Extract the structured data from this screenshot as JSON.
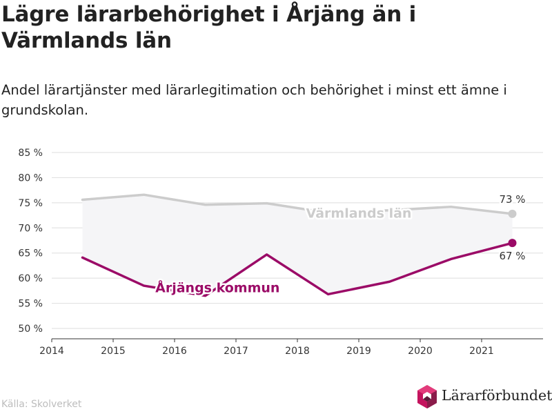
{
  "header": {
    "title": "Lägre lärarbehörighet i Årjäng än i Värmlands län",
    "subtitle": "Andel lärartjänster med lärarlegitimation och behörighet i minst ett ämne i grundskolan."
  },
  "footer": {
    "source": "Källa: Skolverket",
    "logo_text": "Lärarförbundet"
  },
  "chart_data": {
    "type": "line",
    "x_ticks": [
      "2014",
      "2015",
      "2016",
      "2017",
      "2018",
      "2019",
      "2020",
      "2021"
    ],
    "y_ticks": [
      "85 %",
      "80 %",
      "75 %",
      "70 %",
      "65 %",
      "60 %",
      "55 %",
      "50 %"
    ],
    "xlim": [
      2014,
      2022
    ],
    "ylim": [
      50,
      85
    ],
    "grid": true,
    "series": [
      {
        "name": "Värmlands län",
        "color": "#cccccc",
        "x": [
          2014.5,
          2015.5,
          2016.5,
          2017.5,
          2018.5,
          2019.5,
          2020.5,
          2021.5
        ],
        "values": [
          75.6,
          76.6,
          74.6,
          74.9,
          73.0,
          73.5,
          74.2,
          72.8
        ],
        "end_label": "73 %"
      },
      {
        "name": "Årjängs kommun",
        "color": "#9b0b67",
        "x": [
          2014.5,
          2015.5,
          2016.5,
          2017.5,
          2018.5,
          2019.5,
          2020.5,
          2021.5
        ],
        "values": [
          64.1,
          58.5,
          56.5,
          64.7,
          56.8,
          59.3,
          63.8,
          67.0
        ],
        "end_label": "67 %"
      }
    ]
  }
}
